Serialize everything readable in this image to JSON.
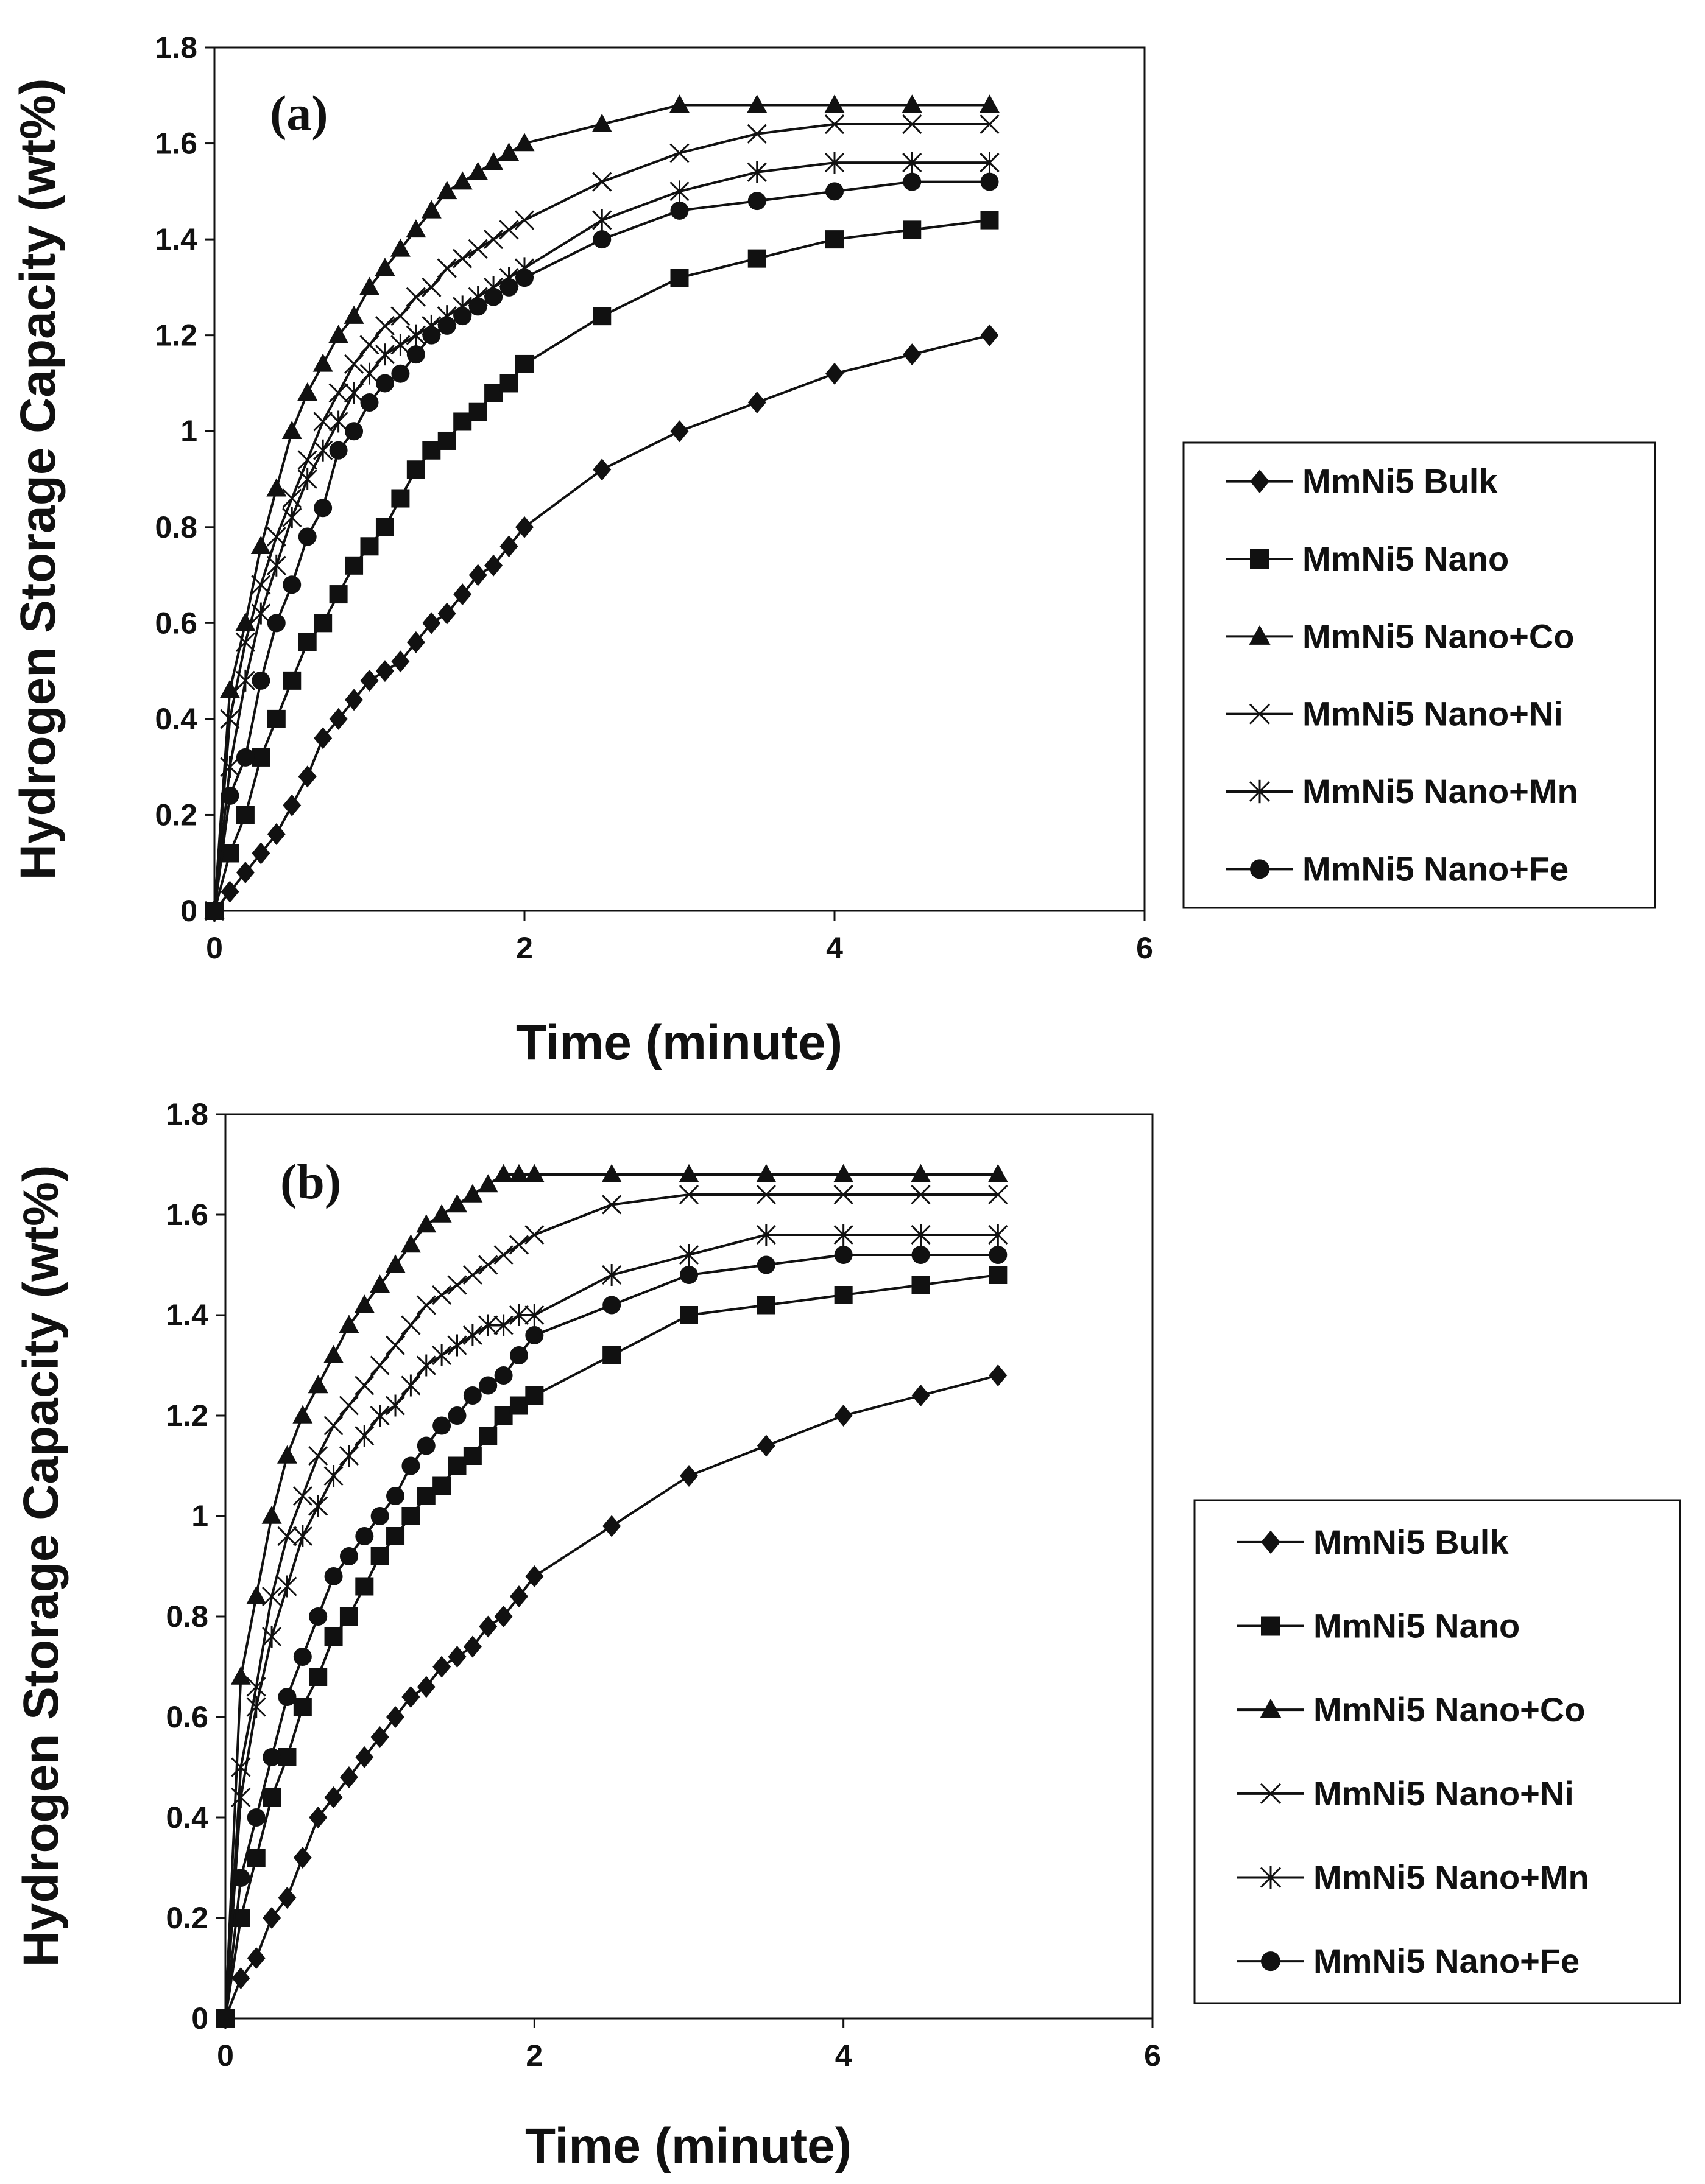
{
  "chart_data": [
    {
      "type": "line",
      "panel_label": "(a)",
      "xlabel": "Time (minute)",
      "ylabel": "Hydrogen Storage Capacity (wt%)",
      "xlim": [
        0,
        6
      ],
      "ylim": [
        0,
        1.8
      ],
      "xticks": [
        0,
        2,
        4,
        6
      ],
      "yticks": [
        0,
        0.2,
        0.4,
        0.6,
        0.8,
        1,
        1.2,
        1.4,
        1.6,
        1.8
      ],
      "ytick_labels": [
        "0",
        "0.2",
        "0.4",
        "0.6",
        "0.8",
        "1",
        "1.2",
        "1.4",
        "1.6",
        "1.8"
      ],
      "grid": false,
      "legend_position": "right",
      "series": [
        {
          "name": "MmNi5 Bulk",
          "marker": "diamond",
          "x": [
            0,
            0.1,
            0.2,
            0.3,
            0.4,
            0.5,
            0.6,
            0.7,
            0.8,
            0.9,
            1.0,
            1.1,
            1.2,
            1.3,
            1.4,
            1.5,
            1.6,
            1.7,
            1.8,
            1.9,
            2.0,
            2.5,
            3.0,
            3.5,
            4.0,
            4.5,
            5.0
          ],
          "y": [
            0,
            0.04,
            0.08,
            0.12,
            0.16,
            0.22,
            0.28,
            0.36,
            0.4,
            0.44,
            0.48,
            0.5,
            0.52,
            0.56,
            0.6,
            0.62,
            0.66,
            0.7,
            0.72,
            0.76,
            0.8,
            0.92,
            1.0,
            1.06,
            1.12,
            1.16,
            1.2
          ]
        },
        {
          "name": "MmNi5 Nano",
          "marker": "square",
          "x": [
            0,
            0.1,
            0.2,
            0.3,
            0.4,
            0.5,
            0.6,
            0.7,
            0.8,
            0.9,
            1.0,
            1.1,
            1.2,
            1.3,
            1.4,
            1.5,
            1.6,
            1.7,
            1.8,
            1.9,
            2.0,
            2.5,
            3.0,
            3.5,
            4.0,
            4.5,
            5.0
          ],
          "y": [
            0,
            0.12,
            0.2,
            0.32,
            0.4,
            0.48,
            0.56,
            0.6,
            0.66,
            0.72,
            0.76,
            0.8,
            0.86,
            0.92,
            0.96,
            0.98,
            1.02,
            1.04,
            1.08,
            1.1,
            1.14,
            1.24,
            1.32,
            1.36,
            1.4,
            1.42,
            1.44
          ]
        },
        {
          "name": "MmNi5 Nano+Co",
          "marker": "triangle",
          "x": [
            0,
            0.1,
            0.2,
            0.3,
            0.4,
            0.5,
            0.6,
            0.7,
            0.8,
            0.9,
            1.0,
            1.1,
            1.2,
            1.3,
            1.4,
            1.5,
            1.6,
            1.7,
            1.8,
            1.9,
            2.0,
            2.5,
            3.0,
            3.5,
            4.0,
            4.5,
            5.0
          ],
          "y": [
            0,
            0.46,
            0.6,
            0.76,
            0.88,
            1.0,
            1.08,
            1.14,
            1.2,
            1.24,
            1.3,
            1.34,
            1.38,
            1.42,
            1.46,
            1.5,
            1.52,
            1.54,
            1.56,
            1.58,
            1.6,
            1.64,
            1.68,
            1.68,
            1.68,
            1.68,
            1.68
          ]
        },
        {
          "name": "MmNi5 Nano+Ni",
          "marker": "x",
          "x": [
            0,
            0.1,
            0.2,
            0.3,
            0.4,
            0.5,
            0.6,
            0.7,
            0.8,
            0.9,
            1.0,
            1.1,
            1.2,
            1.3,
            1.4,
            1.5,
            1.6,
            1.7,
            1.8,
            1.9,
            2.0,
            2.5,
            3.0,
            3.5,
            4.0,
            4.5,
            5.0
          ],
          "y": [
            0,
            0.4,
            0.56,
            0.68,
            0.78,
            0.86,
            0.94,
            1.02,
            1.08,
            1.14,
            1.18,
            1.22,
            1.24,
            1.28,
            1.3,
            1.34,
            1.36,
            1.38,
            1.4,
            1.42,
            1.44,
            1.52,
            1.58,
            1.62,
            1.64,
            1.64,
            1.64
          ]
        },
        {
          "name": "MmNi5 Nano+Mn",
          "marker": "asterisk",
          "x": [
            0,
            0.1,
            0.2,
            0.3,
            0.4,
            0.5,
            0.6,
            0.7,
            0.8,
            0.9,
            1.0,
            1.1,
            1.2,
            1.3,
            1.4,
            1.5,
            1.6,
            1.7,
            1.8,
            1.9,
            2.0,
            2.5,
            3.0,
            3.5,
            4.0,
            4.5,
            5.0
          ],
          "y": [
            0,
            0.3,
            0.48,
            0.62,
            0.72,
            0.82,
            0.9,
            0.96,
            1.02,
            1.08,
            1.12,
            1.16,
            1.18,
            1.2,
            1.22,
            1.24,
            1.26,
            1.28,
            1.3,
            1.32,
            1.34,
            1.44,
            1.5,
            1.54,
            1.56,
            1.56,
            1.56
          ]
        },
        {
          "name": "MmNi5 Nano+Fe",
          "marker": "circle",
          "x": [
            0,
            0.1,
            0.2,
            0.3,
            0.4,
            0.5,
            0.6,
            0.7,
            0.8,
            0.9,
            1.0,
            1.1,
            1.2,
            1.3,
            1.4,
            1.5,
            1.6,
            1.7,
            1.8,
            1.9,
            2.0,
            2.5,
            3.0,
            3.5,
            4.0,
            4.5,
            5.0
          ],
          "y": [
            0,
            0.24,
            0.32,
            0.48,
            0.6,
            0.68,
            0.78,
            0.84,
            0.96,
            1.0,
            1.06,
            1.1,
            1.12,
            1.16,
            1.2,
            1.22,
            1.24,
            1.26,
            1.28,
            1.3,
            1.32,
            1.4,
            1.46,
            1.48,
            1.5,
            1.52,
            1.52
          ]
        }
      ]
    },
    {
      "type": "line",
      "panel_label": "(b)",
      "xlabel": "Time (minute)",
      "ylabel": "Hydrogen Storage Capacity (wt%)",
      "xlim": [
        0,
        6
      ],
      "ylim": [
        0,
        1.8
      ],
      "xticks": [
        0,
        2,
        4,
        6
      ],
      "yticks": [
        0,
        0.2,
        0.4,
        0.6,
        0.8,
        1,
        1.2,
        1.4,
        1.6,
        1.8
      ],
      "ytick_labels": [
        "0",
        "0.2",
        "0.4",
        "0.6",
        "0.8",
        "1",
        "1.2",
        "1.4",
        "1.6",
        "1.8"
      ],
      "grid": false,
      "legend_position": "right",
      "series": [
        {
          "name": "MmNi5 Bulk",
          "marker": "diamond",
          "x": [
            0,
            0.1,
            0.2,
            0.3,
            0.4,
            0.5,
            0.6,
            0.7,
            0.8,
            0.9,
            1.0,
            1.1,
            1.2,
            1.3,
            1.4,
            1.5,
            1.6,
            1.7,
            1.8,
            1.9,
            2.0,
            2.5,
            3.0,
            3.5,
            4.0,
            4.5,
            5.0
          ],
          "y": [
            0,
            0.08,
            0.12,
            0.2,
            0.24,
            0.32,
            0.4,
            0.44,
            0.48,
            0.52,
            0.56,
            0.6,
            0.64,
            0.66,
            0.7,
            0.72,
            0.74,
            0.78,
            0.8,
            0.84,
            0.88,
            0.98,
            1.08,
            1.14,
            1.2,
            1.24,
            1.28
          ]
        },
        {
          "name": "MmNi5 Nano",
          "marker": "square",
          "x": [
            0,
            0.1,
            0.2,
            0.3,
            0.4,
            0.5,
            0.6,
            0.7,
            0.8,
            0.9,
            1.0,
            1.1,
            1.2,
            1.3,
            1.4,
            1.5,
            1.6,
            1.7,
            1.8,
            1.9,
            2.0,
            2.5,
            3.0,
            3.5,
            4.0,
            4.5,
            5.0
          ],
          "y": [
            0,
            0.2,
            0.32,
            0.44,
            0.52,
            0.62,
            0.68,
            0.76,
            0.8,
            0.86,
            0.92,
            0.96,
            1.0,
            1.04,
            1.06,
            1.1,
            1.12,
            1.16,
            1.2,
            1.22,
            1.24,
            1.32,
            1.4,
            1.42,
            1.44,
            1.46,
            1.48
          ]
        },
        {
          "name": "MmNi5 Nano+Co",
          "marker": "triangle",
          "x": [
            0,
            0.1,
            0.2,
            0.3,
            0.4,
            0.5,
            0.6,
            0.7,
            0.8,
            0.9,
            1.0,
            1.1,
            1.2,
            1.3,
            1.4,
            1.5,
            1.6,
            1.7,
            1.8,
            1.9,
            2.0,
            2.5,
            3.0,
            3.5,
            4.0,
            4.5,
            5.0
          ],
          "y": [
            0,
            0.68,
            0.84,
            1.0,
            1.12,
            1.2,
            1.26,
            1.32,
            1.38,
            1.42,
            1.46,
            1.5,
            1.54,
            1.58,
            1.6,
            1.62,
            1.64,
            1.66,
            1.68,
            1.68,
            1.68,
            1.68,
            1.68,
            1.68,
            1.68,
            1.68,
            1.68
          ]
        },
        {
          "name": "MmNi5 Nano+Ni",
          "marker": "x",
          "x": [
            0,
            0.1,
            0.2,
            0.3,
            0.4,
            0.5,
            0.6,
            0.7,
            0.8,
            0.9,
            1.0,
            1.1,
            1.2,
            1.3,
            1.4,
            1.5,
            1.6,
            1.7,
            1.8,
            1.9,
            2.0,
            2.5,
            3.0,
            3.5,
            4.0,
            4.5,
            5.0
          ],
          "y": [
            0,
            0.5,
            0.66,
            0.84,
            0.96,
            1.04,
            1.12,
            1.18,
            1.22,
            1.26,
            1.3,
            1.34,
            1.38,
            1.42,
            1.44,
            1.46,
            1.48,
            1.5,
            1.52,
            1.54,
            1.56,
            1.62,
            1.64,
            1.64,
            1.64,
            1.64,
            1.64
          ]
        },
        {
          "name": "MmNi5 Nano+Mn",
          "marker": "asterisk",
          "x": [
            0,
            0.1,
            0.2,
            0.3,
            0.4,
            0.5,
            0.6,
            0.7,
            0.8,
            0.9,
            1.0,
            1.1,
            1.2,
            1.3,
            1.4,
            1.5,
            1.6,
            1.7,
            1.8,
            1.9,
            2.0,
            2.5,
            3.0,
            3.5,
            4.0,
            4.5,
            5.0
          ],
          "y": [
            0,
            0.44,
            0.62,
            0.76,
            0.86,
            0.96,
            1.02,
            1.08,
            1.12,
            1.16,
            1.2,
            1.22,
            1.26,
            1.3,
            1.32,
            1.34,
            1.36,
            1.38,
            1.38,
            1.4,
            1.4,
            1.48,
            1.52,
            1.56,
            1.56,
            1.56,
            1.56
          ]
        },
        {
          "name": "MmNi5 Nano+Fe",
          "marker": "circle",
          "x": [
            0,
            0.1,
            0.2,
            0.3,
            0.4,
            0.5,
            0.6,
            0.7,
            0.8,
            0.9,
            1.0,
            1.1,
            1.2,
            1.3,
            1.4,
            1.5,
            1.6,
            1.7,
            1.8,
            1.9,
            2.0,
            2.5,
            3.0,
            3.5,
            4.0,
            4.5,
            5.0
          ],
          "y": [
            0,
            0.28,
            0.4,
            0.52,
            0.64,
            0.72,
            0.8,
            0.88,
            0.92,
            0.96,
            1.0,
            1.04,
            1.1,
            1.14,
            1.18,
            1.2,
            1.24,
            1.26,
            1.28,
            1.32,
            1.36,
            1.42,
            1.48,
            1.5,
            1.52,
            1.52,
            1.52
          ]
        }
      ]
    }
  ]
}
